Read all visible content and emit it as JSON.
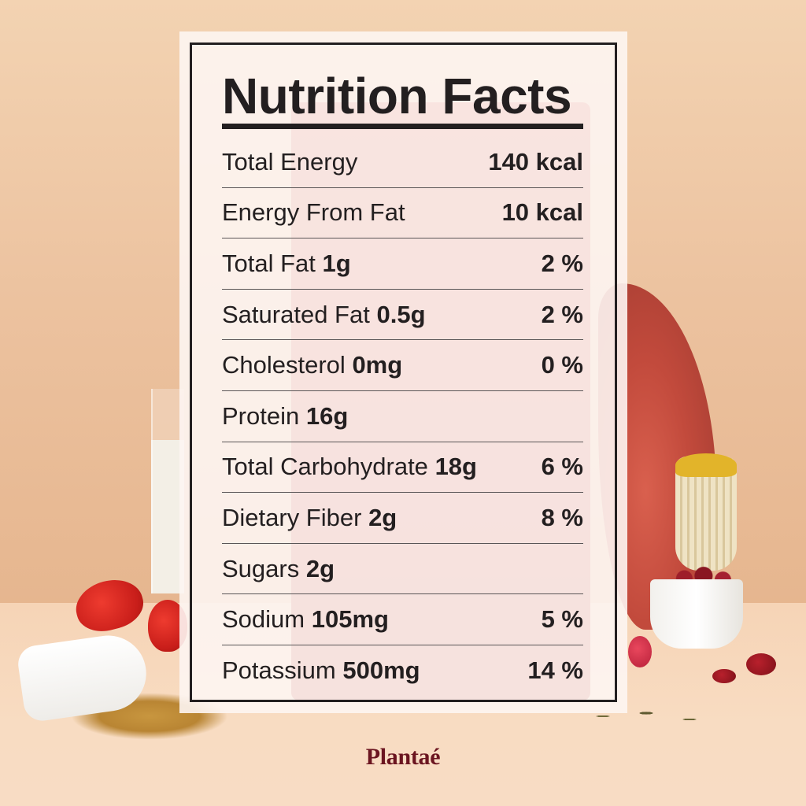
{
  "panel": {
    "title": "Nutrition Facts",
    "rows": [
      {
        "name": "Total Energy",
        "amount": "",
        "value": "140 kcal"
      },
      {
        "name": "Energy From Fat",
        "amount": "",
        "value": "10 kcal"
      },
      {
        "name": "Total Fat",
        "amount": "1g",
        "value": "2 %"
      },
      {
        "name": "Saturated Fat",
        "amount": "0.5g",
        "value": "2 %"
      },
      {
        "name": "Cholesterol",
        "amount": "0mg",
        "value": "0 %"
      },
      {
        "name": "Protein",
        "amount": "16g",
        "value": ""
      },
      {
        "name": "Total Carbohydrate",
        "amount": "18g",
        "value": "6 %"
      },
      {
        "name": "Dietary Fiber",
        "amount": "2g",
        "value": "8 %"
      },
      {
        "name": "Sugars",
        "amount": "2g",
        "value": ""
      },
      {
        "name": "Sodium",
        "amount": "105mg",
        "value": "5 %"
      },
      {
        "name": "Potassium",
        "amount": "500mg",
        "value": "14 %"
      }
    ]
  },
  "brand": {
    "name": "Plantaé",
    "color": "#6b1520"
  },
  "colors": {
    "text": "#231f20",
    "wall": "#e8b995",
    "table": "#f6d4b6",
    "panel": "#fdf5f2"
  }
}
